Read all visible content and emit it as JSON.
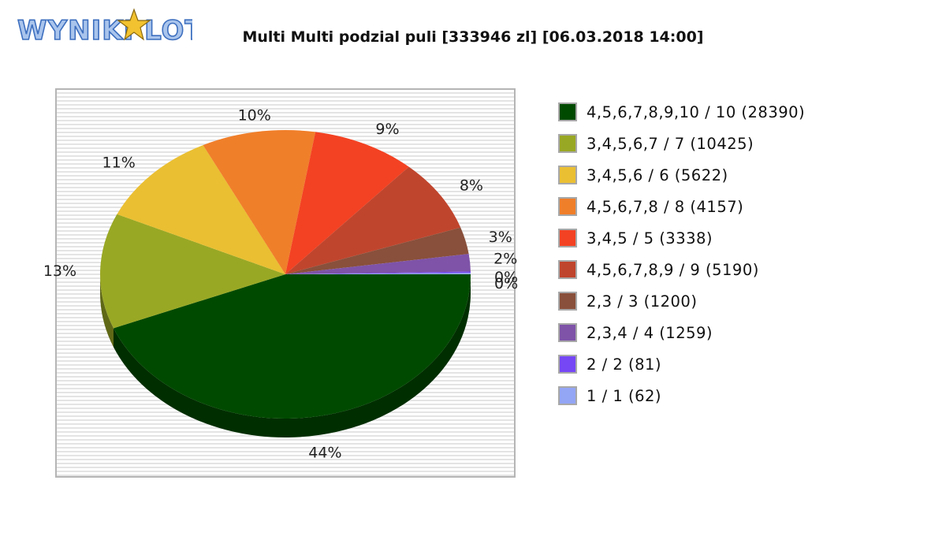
{
  "logo": {
    "text": "WYNIKI LOTTO"
  },
  "chart_data": {
    "type": "pie",
    "title": "Multi Multi podzial puli [333946 zl] [06.03.2018 14:00]",
    "legend_position": "right",
    "slices": [
      {
        "name": "4,5,6,7,8,9,10 / 10 (28390)",
        "value": 146,
        "label": "44%",
        "color": "#004a00"
      },
      {
        "name": "3,4,5,6,7 / 7 (10425)",
        "value": 43,
        "label": "13%",
        "color": "#99a824"
      },
      {
        "name": "3,4,5,6 / 6 (5622)",
        "value": 36,
        "label": "11%",
        "color": "#eabf32"
      },
      {
        "name": "4,5,6,7,8 / 8 (4157)",
        "value": 33,
        "label": "10%",
        "color": "#f07f2a"
      },
      {
        "name": "3,4,5 / 5 (3338)",
        "value": 30,
        "label": "9%",
        "color": "#f34223"
      },
      {
        "name": "4,5,6,7,8,9 / 9 (5190)",
        "value": 27,
        "label": "8%",
        "color": "#c0452d"
      },
      {
        "name": "2,3 / 3 (1200)",
        "value": 10,
        "label": "3%",
        "color": "#89503b"
      },
      {
        "name": "2,3,4 / 4 (1259)",
        "value": 6.5,
        "label": "2%",
        "color": "#7e53a8"
      },
      {
        "name": "2 / 2 (81)",
        "value": 0.5,
        "label": "0%",
        "color": "#7547f5"
      },
      {
        "name": "1 / 1 (62)",
        "value": 0.5,
        "label": "0%",
        "color": "#93a5f5"
      }
    ]
  }
}
